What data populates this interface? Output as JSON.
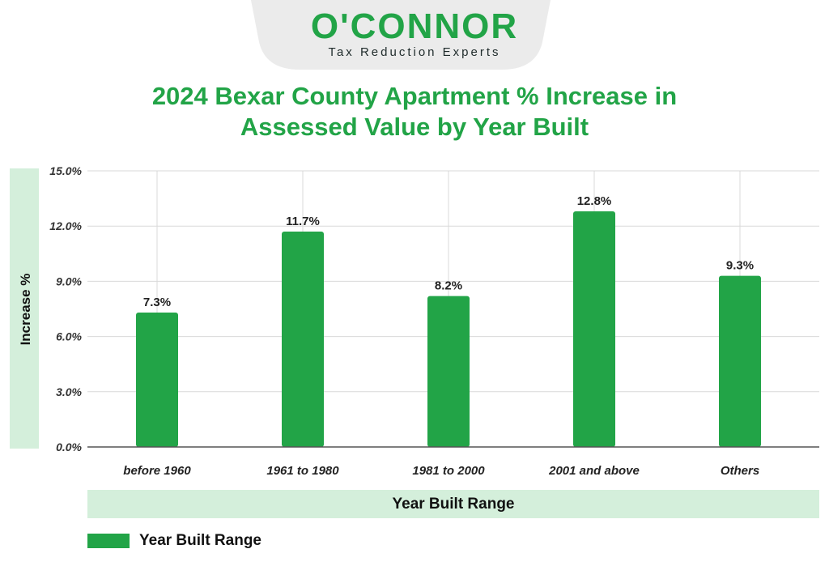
{
  "logo": {
    "name": "O'CONNOR",
    "tagline": "Tax Reduction Experts"
  },
  "colors": {
    "brand_green": "#22a447",
    "panel_green": "#d4efdb",
    "tab_gray": "#ebebeb"
  },
  "chart_data": {
    "type": "bar",
    "title": "2024 Bexar County Apartment % Increase in Assessed Value by Year Built",
    "title_lines": [
      "2024 Bexar County Apartment % Increase in",
      "Assessed Value by Year Built"
    ],
    "xlabel": "Year Built Range",
    "ylabel": "Increase %",
    "categories": [
      "before 1960",
      "1961 to 1980",
      "1981 to 2000",
      "2001 and above",
      "Others"
    ],
    "series": [
      {
        "name": "Year Built Range",
        "values": [
          7.3,
          11.7,
          8.2,
          12.8,
          9.3
        ]
      }
    ],
    "data_labels": [
      "7.3%",
      "11.7%",
      "8.2%",
      "12.8%",
      "9.3%"
    ],
    "yticks": [
      0,
      3,
      6,
      9,
      12,
      15
    ],
    "ytick_labels": [
      "0.0%",
      "3.0%",
      "6.0%",
      "9.0%",
      "12.0%",
      "15.0%"
    ],
    "ylim": [
      0,
      15
    ],
    "grid": true,
    "legend": "bottom-left"
  }
}
